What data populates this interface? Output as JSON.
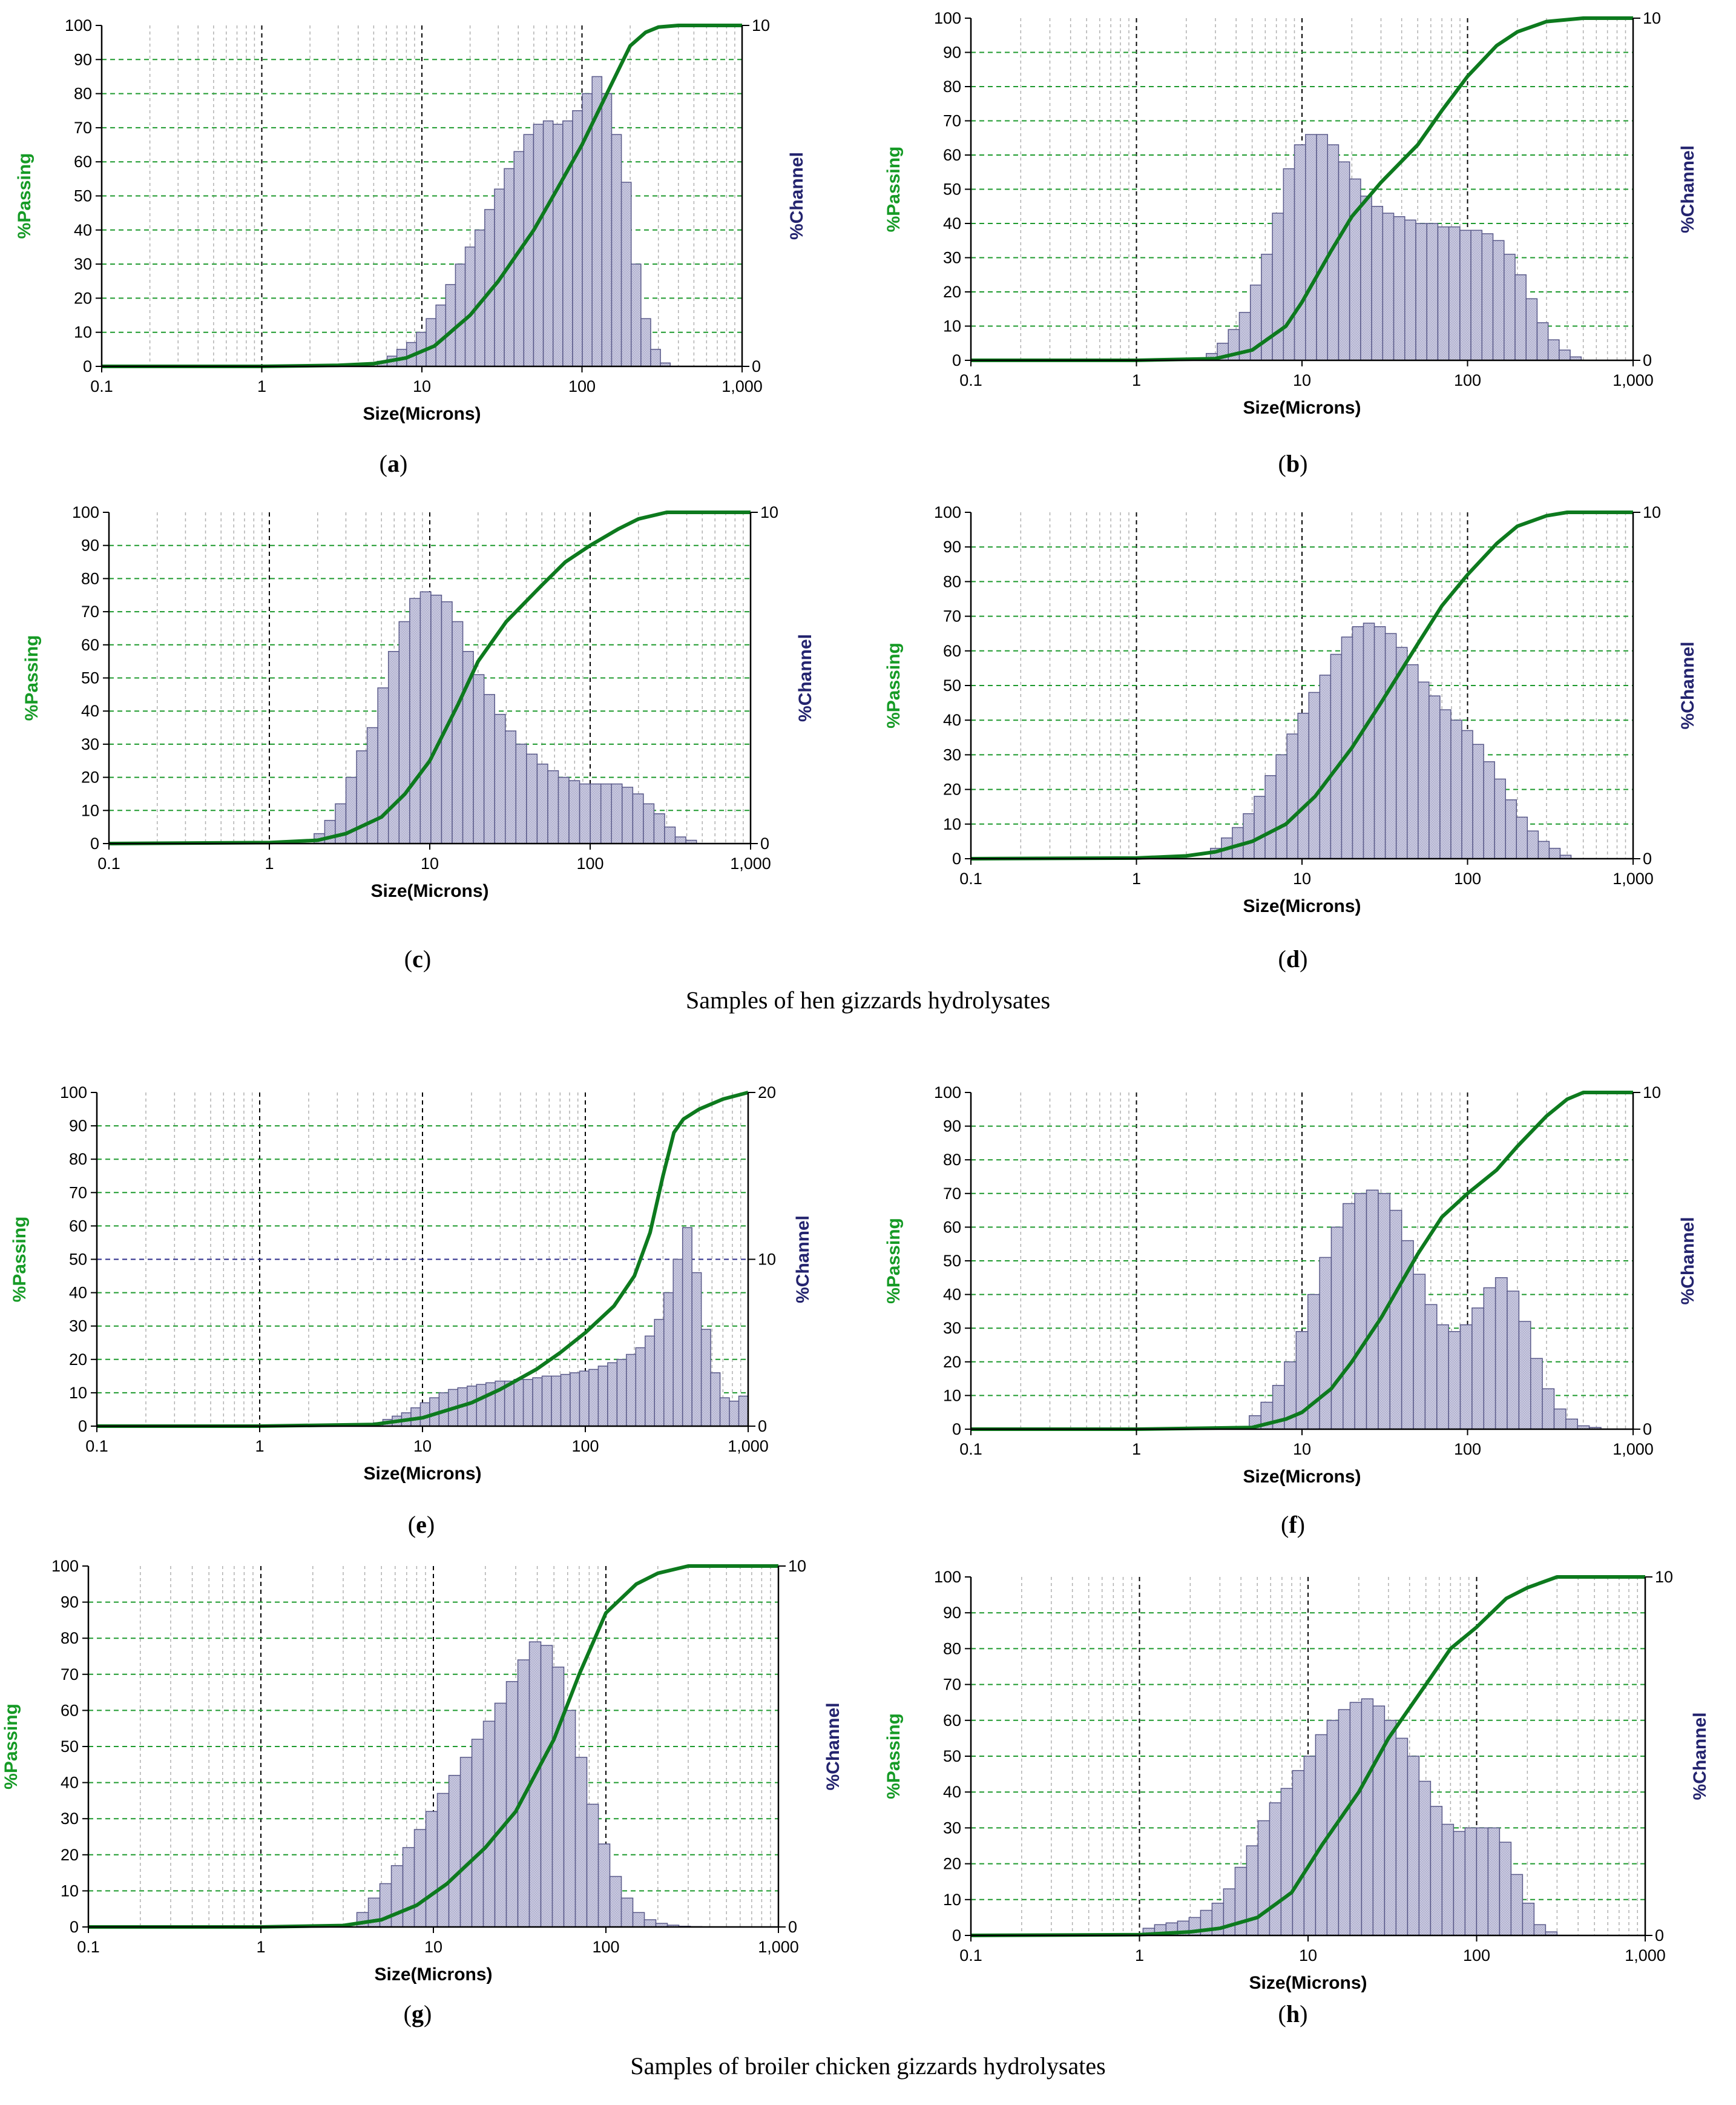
{
  "figure": {
    "caption_hen": "Samples of hen gizzards hydrolysates",
    "caption_broiler": "Samples of broiler chicken gizzards hydrolysates"
  },
  "style": {
    "line_color": "#0d7a1e",
    "bar_fill": "#c4c4dc",
    "bar_stroke": "#5a5a8a",
    "grid_green": "#1e9a2e",
    "grid_blue": "#2b2b8a",
    "passing_label_color": "#159a25",
    "channel_label_color": "#23236e"
  },
  "chart_data": [
    {
      "id": "a",
      "label": "a",
      "type": "bar",
      "title": "",
      "xlabel": "Size(Microns)",
      "ylabel": "%Passing",
      "y2label": "%Channel",
      "xscale": "log",
      "xlim": [
        0.1,
        1000
      ],
      "ylim": [
        0,
        100
      ],
      "y2lim": [
        0,
        10
      ],
      "xticks": [
        "0.1",
        "1",
        "10",
        "100",
        "1,000"
      ],
      "yticks": [
        "0",
        "10",
        "20",
        "30",
        "40",
        "50",
        "60",
        "70",
        "80",
        "90",
        "100"
      ],
      "y2ticks": [
        "0",
        "10"
      ],
      "bar_edges": [
        5.27,
        355.6
      ],
      "bar_count": 30,
      "channel": [
        0.15,
        0.3,
        0.5,
        0.7,
        1.0,
        1.4,
        1.8,
        2.4,
        3.0,
        3.5,
        4.0,
        4.6,
        5.2,
        5.8,
        6.3,
        6.8,
        7.1,
        7.2,
        7.1,
        7.2,
        7.5,
        8.0,
        8.5,
        8.0,
        6.8,
        5.4,
        3.0,
        1.4,
        0.5,
        0.1
      ],
      "passing": [
        [
          0.1,
          0
        ],
        [
          1,
          0
        ],
        [
          3,
          0.3
        ],
        [
          5,
          0.8
        ],
        [
          8,
          2.5
        ],
        [
          12,
          6
        ],
        [
          20,
          15
        ],
        [
          30,
          25
        ],
        [
          50,
          40
        ],
        [
          70,
          52
        ],
        [
          100,
          65
        ],
        [
          150,
          82
        ],
        [
          200,
          94
        ],
        [
          250,
          98
        ],
        [
          300,
          99.5
        ],
        [
          400,
          100
        ],
        [
          1000,
          100
        ]
      ]
    },
    {
      "id": "b",
      "label": "b",
      "type": "bar",
      "title": "",
      "xlabel": "Size(Microns)",
      "ylabel": "%Passing",
      "y2label": "%Channel",
      "xscale": "log",
      "xlim": [
        0.1,
        1000
      ],
      "ylim": [
        0,
        100
      ],
      "y2lim": [
        0,
        10
      ],
      "xticks": [
        "0.1",
        "1",
        "10",
        "100",
        "1,000"
      ],
      "yticks": [
        "0",
        "10",
        "20",
        "30",
        "40",
        "50",
        "60",
        "70",
        "80",
        "90",
        "100"
      ],
      "y2ticks": [
        "0",
        "10"
      ],
      "bar_edges": [
        2.64,
        486
      ],
      "bar_count": 34,
      "channel": [
        0.2,
        0.5,
        0.9,
        1.4,
        2.2,
        3.1,
        4.3,
        5.6,
        6.3,
        6.6,
        6.6,
        6.3,
        5.8,
        5.3,
        4.8,
        4.5,
        4.3,
        4.2,
        4.1,
        4.0,
        4.0,
        3.9,
        3.9,
        3.8,
        3.8,
        3.7,
        3.5,
        3.1,
        2.5,
        1.8,
        1.1,
        0.6,
        0.3,
        0.1
      ],
      "passing": [
        [
          0.1,
          0
        ],
        [
          1,
          0
        ],
        [
          3,
          0.5
        ],
        [
          5,
          3
        ],
        [
          8,
          10
        ],
        [
          10,
          17
        ],
        [
          15,
          32
        ],
        [
          20,
          42
        ],
        [
          30,
          52
        ],
        [
          50,
          63
        ],
        [
          70,
          73
        ],
        [
          100,
          83
        ],
        [
          150,
          92
        ],
        [
          200,
          96
        ],
        [
          300,
          99
        ],
        [
          500,
          100
        ],
        [
          1000,
          100
        ]
      ]
    },
    {
      "id": "c",
      "label": "c",
      "type": "bar",
      "title": "",
      "xlabel": "Size(Microns)",
      "ylabel": "%Passing",
      "y2label": "%Channel",
      "xscale": "log",
      "xlim": [
        0.1,
        1000
      ],
      "ylim": [
        0,
        100
      ],
      "y2lim": [
        0,
        10
      ],
      "xticks": [
        "0.1",
        "1",
        "10",
        "100",
        "1,000"
      ],
      "yticks": [
        "0",
        "10",
        "20",
        "30",
        "40",
        "50",
        "60",
        "70",
        "80",
        "90",
        "100"
      ],
      "y2ticks": [
        "0",
        "10"
      ],
      "bar_edges": [
        1.9,
        460
      ],
      "bar_count": 36,
      "channel": [
        0.3,
        0.7,
        1.2,
        2.0,
        2.8,
        3.5,
        4.7,
        5.8,
        6.7,
        7.4,
        7.6,
        7.5,
        7.3,
        6.7,
        5.8,
        5.1,
        4.5,
        3.9,
        3.4,
        3.0,
        2.7,
        2.4,
        2.2,
        2.0,
        1.9,
        1.8,
        1.8,
        1.8,
        1.8,
        1.7,
        1.5,
        1.2,
        0.9,
        0.5,
        0.2,
        0.1
      ],
      "passing": [
        [
          0.1,
          0
        ],
        [
          1,
          0.3
        ],
        [
          2,
          1
        ],
        [
          3,
          3
        ],
        [
          5,
          8
        ],
        [
          7,
          15
        ],
        [
          10,
          25
        ],
        [
          15,
          42
        ],
        [
          20,
          55
        ],
        [
          30,
          67
        ],
        [
          50,
          78
        ],
        [
          70,
          85
        ],
        [
          100,
          90
        ],
        [
          150,
          95
        ],
        [
          200,
          98
        ],
        [
          300,
          100
        ],
        [
          1000,
          100
        ]
      ]
    },
    {
      "id": "d",
      "label": "d",
      "type": "bar",
      "title": "",
      "xlabel": "Size(Microns)",
      "ylabel": "%Passing",
      "y2label": "%Channel",
      "xscale": "log",
      "xlim": [
        0.1,
        1000
      ],
      "ylim": [
        0,
        100
      ],
      "y2lim": [
        0,
        10
      ],
      "xticks": [
        "0.1",
        "1",
        "10",
        "100",
        "1,000"
      ],
      "yticks": [
        "0",
        "10",
        "20",
        "30",
        "40",
        "50",
        "60",
        "70",
        "80",
        "90",
        "100"
      ],
      "y2ticks": [
        "0",
        "10"
      ],
      "bar_edges": [
        2.8,
        422
      ],
      "bar_count": 33,
      "channel": [
        0.3,
        0.6,
        0.9,
        1.3,
        1.8,
        2.4,
        3.0,
        3.6,
        4.2,
        4.8,
        5.3,
        5.9,
        6.4,
        6.7,
        6.8,
        6.7,
        6.5,
        6.1,
        5.6,
        5.1,
        4.7,
        4.3,
        4.0,
        3.7,
        3.3,
        2.8,
        2.3,
        1.7,
        1.2,
        0.8,
        0.5,
        0.3,
        0.1
      ],
      "passing": [
        [
          0.1,
          0
        ],
        [
          1,
          0.2
        ],
        [
          2,
          0.8
        ],
        [
          3,
          2
        ],
        [
          5,
          5
        ],
        [
          8,
          10
        ],
        [
          12,
          18
        ],
        [
          20,
          32
        ],
        [
          30,
          45
        ],
        [
          50,
          62
        ],
        [
          70,
          73
        ],
        [
          100,
          82
        ],
        [
          150,
          91
        ],
        [
          200,
          96
        ],
        [
          300,
          99
        ],
        [
          400,
          100
        ],
        [
          1000,
          100
        ]
      ]
    },
    {
      "id": "e",
      "label": "e",
      "type": "bar",
      "title": "",
      "xlabel": "Size(Microns)",
      "ylabel": "%Passing",
      "y2label": "%Channel",
      "xscale": "log",
      "xlim": [
        0.1,
        1000
      ],
      "ylim": [
        0,
        100
      ],
      "y2lim": [
        0,
        20
      ],
      "xticks": [
        "0.1",
        "1",
        "10",
        "100",
        "1,000"
      ],
      "yticks": [
        "0",
        "10",
        "20",
        "30",
        "40",
        "50",
        "60",
        "70",
        "80",
        "90",
        "100"
      ],
      "y2ticks": [
        "0",
        "10",
        "20"
      ],
      "bar_edges": [
        5,
        1000
      ],
      "bar_count": 40,
      "channel": [
        0.2,
        0.4,
        0.6,
        0.8,
        1.1,
        1.4,
        1.7,
        2.0,
        2.2,
        2.3,
        2.4,
        2.5,
        2.6,
        2.7,
        2.7,
        2.8,
        2.8,
        2.9,
        3.0,
        3.0,
        3.1,
        3.2,
        3.3,
        3.4,
        3.6,
        3.8,
        4.0,
        4.3,
        4.7,
        5.4,
        6.4,
        8.0,
        10.0,
        11.9,
        9.2,
        5.8,
        3.2,
        1.7,
        1.5,
        1.8
      ],
      "passing": [
        [
          0.1,
          0
        ],
        [
          1,
          0
        ],
        [
          5,
          0.5
        ],
        [
          10,
          2.5
        ],
        [
          20,
          7
        ],
        [
          30,
          11
        ],
        [
          50,
          17
        ],
        [
          70,
          22
        ],
        [
          100,
          28
        ],
        [
          150,
          36
        ],
        [
          200,
          45
        ],
        [
          250,
          58
        ],
        [
          300,
          75
        ],
        [
          350,
          88
        ],
        [
          400,
          92
        ],
        [
          500,
          95
        ],
        [
          700,
          98
        ],
        [
          1000,
          100
        ]
      ]
    },
    {
      "id": "f",
      "label": "f",
      "type": "bar",
      "title": "",
      "xlabel": "Size(Microns)",
      "ylabel": "%Passing",
      "y2label": "%Channel",
      "xscale": "log",
      "xlim": [
        0.1,
        1000
      ],
      "ylim": [
        0,
        100
      ],
      "y2lim": [
        0,
        10
      ],
      "xticks": [
        "0.1",
        "1",
        "10",
        "100",
        "1,000"
      ],
      "yticks": [
        "0",
        "10",
        "20",
        "30",
        "40",
        "50",
        "60",
        "70",
        "80",
        "90",
        "100"
      ],
      "y2ticks": [
        "0",
        "10"
      ],
      "bar_edges": [
        4.8,
        640
      ],
      "bar_count": 30,
      "channel": [
        0.4,
        0.8,
        1.3,
        2.0,
        2.9,
        4.0,
        5.1,
        6.0,
        6.7,
        7.0,
        7.1,
        7.0,
        6.5,
        5.6,
        4.6,
        3.7,
        3.1,
        2.9,
        3.1,
        3.6,
        4.2,
        4.5,
        4.1,
        3.2,
        2.1,
        1.2,
        0.6,
        0.3,
        0.1,
        0.05
      ],
      "passing": [
        [
          0.1,
          0
        ],
        [
          1,
          0
        ],
        [
          5,
          0.5
        ],
        [
          8,
          3
        ],
        [
          10,
          5
        ],
        [
          15,
          12
        ],
        [
          20,
          20
        ],
        [
          30,
          33
        ],
        [
          50,
          52
        ],
        [
          70,
          63
        ],
        [
          100,
          70
        ],
        [
          150,
          77
        ],
        [
          200,
          84
        ],
        [
          300,
          93
        ],
        [
          400,
          98
        ],
        [
          500,
          100
        ],
        [
          1000,
          100
        ]
      ]
    },
    {
      "id": "g",
      "label": "g",
      "type": "bar",
      "title": "",
      "xlabel": "Size(Microns)",
      "ylabel": "%Passing",
      "y2label": "%Channel",
      "xscale": "log",
      "xlim": [
        0.1,
        1000
      ],
      "ylim": [
        0,
        100
      ],
      "y2lim": [
        0,
        10
      ],
      "xticks": [
        "0.1",
        "1",
        "10",
        "100",
        "1,000"
      ],
      "yticks": [
        "0",
        "10",
        "20",
        "30",
        "40",
        "50",
        "60",
        "70",
        "80",
        "90",
        "100"
      ],
      "y2ticks": [
        "0",
        "10"
      ],
      "bar_edges": [
        3.6,
        360
      ],
      "bar_count": 30,
      "channel": [
        0.4,
        0.8,
        1.2,
        1.7,
        2.2,
        2.7,
        3.2,
        3.7,
        4.2,
        4.7,
        5.2,
        5.7,
        6.2,
        6.8,
        7.4,
        7.9,
        7.8,
        7.2,
        6.0,
        4.7,
        3.4,
        2.3,
        1.4,
        0.8,
        0.4,
        0.2,
        0.1,
        0.05,
        0.02,
        0.01
      ],
      "passing": [
        [
          0.1,
          0
        ],
        [
          1,
          0
        ],
        [
          3,
          0.4
        ],
        [
          5,
          2
        ],
        [
          8,
          6
        ],
        [
          12,
          12
        ],
        [
          20,
          22
        ],
        [
          30,
          32
        ],
        [
          50,
          52
        ],
        [
          70,
          70
        ],
        [
          100,
          87
        ],
        [
          150,
          95
        ],
        [
          200,
          98
        ],
        [
          300,
          100
        ],
        [
          1000,
          100
        ]
      ]
    },
    {
      "id": "h",
      "label": "h",
      "type": "bar",
      "title": "",
      "xlabel": "Size(Microns)",
      "ylabel": "%Passing",
      "y2label": "%Channel",
      "xscale": "log",
      "xlim": [
        0.1,
        1000
      ],
      "ylim": [
        0,
        100
      ],
      "y2lim": [
        0,
        10
      ],
      "xticks": [
        "0.1",
        "1",
        "10",
        "100",
        "1,000"
      ],
      "yticks": [
        "0",
        "10",
        "20",
        "30",
        "40",
        "50",
        "60",
        "70",
        "80",
        "90",
        "100"
      ],
      "y2ticks": [
        "0",
        "10"
      ],
      "bar_edges": [
        1.05,
        300
      ],
      "bar_count": 36,
      "channel": [
        0.2,
        0.3,
        0.35,
        0.4,
        0.5,
        0.7,
        0.9,
        1.3,
        1.9,
        2.5,
        3.2,
        3.7,
        4.1,
        4.6,
        5.0,
        5.6,
        6.0,
        6.3,
        6.5,
        6.6,
        6.4,
        6.0,
        5.5,
        5.0,
        4.3,
        3.6,
        3.1,
        2.9,
        3.0,
        3.0,
        3.0,
        2.6,
        1.7,
        0.9,
        0.3,
        0.1
      ],
      "passing": [
        [
          0.1,
          0
        ],
        [
          1,
          0.2
        ],
        [
          2,
          1
        ],
        [
          3,
          2
        ],
        [
          5,
          5
        ],
        [
          8,
          12
        ],
        [
          12,
          25
        ],
        [
          20,
          40
        ],
        [
          30,
          55
        ],
        [
          50,
          70
        ],
        [
          70,
          80
        ],
        [
          100,
          86
        ],
        [
          150,
          94
        ],
        [
          200,
          97
        ],
        [
          300,
          100
        ],
        [
          1000,
          100
        ]
      ]
    }
  ]
}
